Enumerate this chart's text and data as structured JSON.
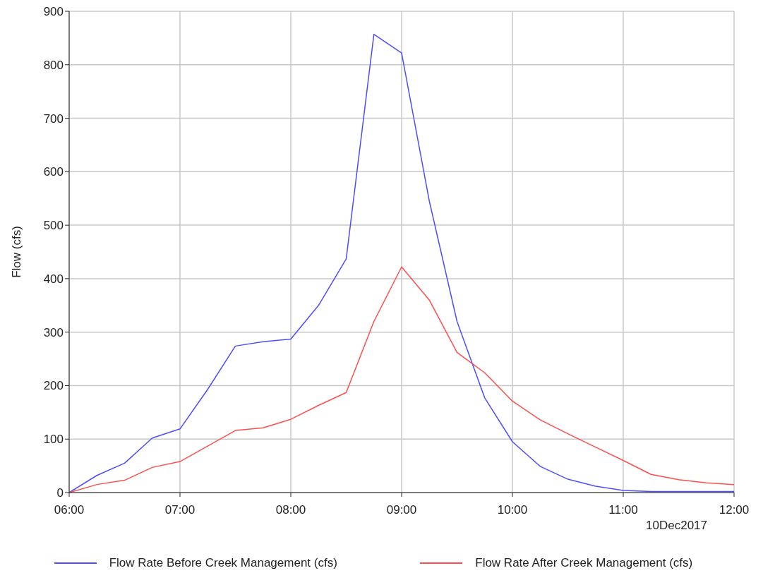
{
  "chart_data": {
    "type": "line",
    "xlabel": "10Dec2017",
    "ylabel": "Flow (cfs)",
    "x": [
      6,
      6.25,
      6.5,
      6.75,
      7,
      7.25,
      7.5,
      7.75,
      8,
      8.25,
      8.5,
      8.75,
      9,
      9.25,
      9.5,
      9.75,
      10,
      10.25,
      10.5,
      10.75,
      11,
      11.25,
      11.5,
      11.75,
      12
    ],
    "series": [
      {
        "name": "Flow Rate Before Creek Management (cfs)",
        "color": "#4d4dff",
        "values": [
          0,
          32,
          55,
          102,
          119,
          193,
          274,
          282,
          287,
          350,
          437,
          857,
          822,
          545,
          320,
          177,
          95,
          49,
          25,
          12,
          4,
          2,
          2,
          2,
          2
        ]
      },
      {
        "name": "Flow Rate After Creek Management (cfs)",
        "color": "#ff4d4d",
        "values": [
          0,
          15,
          23,
          47,
          58,
          87,
          116,
          121,
          137,
          163,
          187,
          320,
          422,
          360,
          262,
          224,
          171,
          136,
          110,
          85,
          60,
          34,
          24,
          18,
          15
        ]
      }
    ],
    "xlim": [
      6,
      12
    ],
    "xticks": [
      {
        "value": 6,
        "label": "06:00"
      },
      {
        "value": 7,
        "label": "07:00"
      },
      {
        "value": 8,
        "label": "08:00"
      },
      {
        "value": 9,
        "label": "09:00"
      },
      {
        "value": 10,
        "label": "10:00"
      },
      {
        "value": 11,
        "label": "11:00"
      },
      {
        "value": 12,
        "label": "12:00"
      }
    ],
    "ylim": [
      0,
      900
    ],
    "yticks": [
      0,
      100,
      200,
      300,
      400,
      500,
      600,
      700,
      800,
      900
    ],
    "grid": true,
    "legend": "bottom",
    "marker": "none",
    "line_style": "solid"
  }
}
